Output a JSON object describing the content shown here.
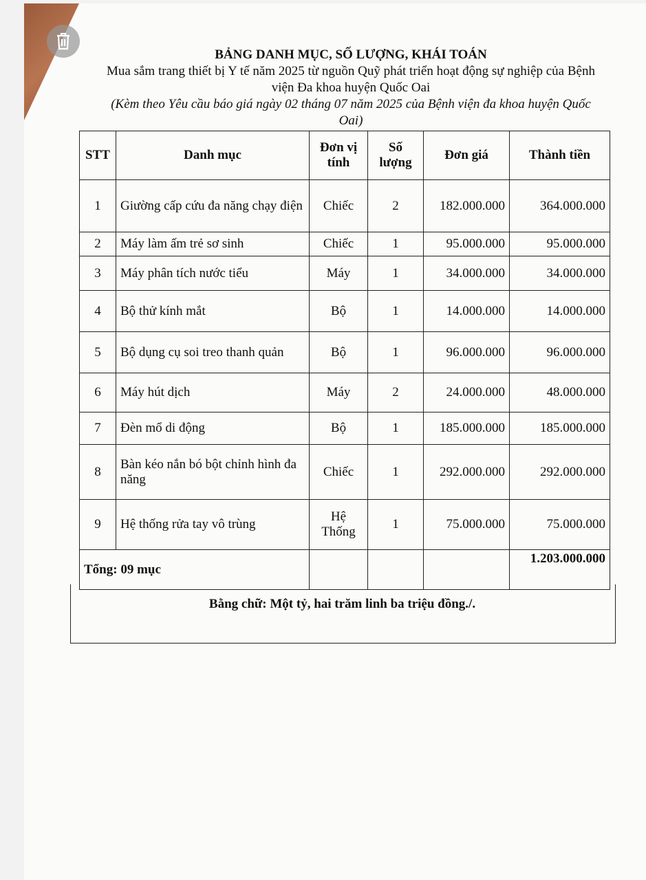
{
  "header": {
    "title": "BẢNG DANH MỤC, SỐ LƯỢNG, KHÁI TOÁN",
    "subtitle": "Mua sắm trang thiết bị Y tế năm 2025 từ nguồn Quỹ phát triển hoạt động sự nghiệp của Bệnh viện Đa khoa huyện Quốc Oai",
    "note": "(Kèm theo Yêu cầu báo giá ngày 02 tháng 07 năm 2025 của Bệnh viện đa khoa huyện Quốc Oai)"
  },
  "table": {
    "columns": [
      "STT",
      "Danh mục",
      "Đơn vị tính",
      "Số lượng",
      "Đơn giá",
      "Thành tiền"
    ],
    "rows": [
      {
        "stt": "1",
        "name": "Giường cấp cứu đa năng chạy điện",
        "unit": "Chiếc",
        "qty": "2",
        "price": "182.000.000",
        "total": "364.000.000"
      },
      {
        "stt": "2",
        "name": "Máy làm ấm trẻ sơ sinh",
        "unit": "Chiếc",
        "qty": "1",
        "price": "95.000.000",
        "total": "95.000.000"
      },
      {
        "stt": "3",
        "name": "Máy phân tích nước tiểu",
        "unit": "Máy",
        "qty": "1",
        "price": "34.000.000",
        "total": "34.000.000"
      },
      {
        "stt": "4",
        "name": "Bộ thử kính mắt",
        "unit": "Bộ",
        "qty": "1",
        "price": "14.000.000",
        "total": "14.000.000"
      },
      {
        "stt": "5",
        "name": "Bộ dụng cụ soi treo thanh quản",
        "unit": "Bộ",
        "qty": "1",
        "price": "96.000.000",
        "total": "96.000.000"
      },
      {
        "stt": "6",
        "name": "Máy hút dịch",
        "unit": "Máy",
        "qty": "2",
        "price": "24.000.000",
        "total": "48.000.000"
      },
      {
        "stt": "7",
        "name": "Đèn mổ di động",
        "unit": "Bộ",
        "qty": "1",
        "price": "185.000.000",
        "total": "185.000.000"
      },
      {
        "stt": "8",
        "name": "Bàn kéo nắn bó bột chỉnh hình đa năng",
        "unit": "Chiếc",
        "qty": "1",
        "price": "292.000.000",
        "total": "292.000.000"
      },
      {
        "stt": "9",
        "name": "Hệ thống rửa tay vô trùng",
        "unit": "Hệ Thống",
        "qty": "1",
        "price": "75.000.000",
        "total": "75.000.000"
      }
    ],
    "total_label": "Tổng: 09 mục",
    "grand_total": "1.203.000.000",
    "in_words": "Bằng chữ: Một tỷ, hai trăm linh ba triệu đồng./."
  },
  "icons": {
    "overlay": "trash-icon"
  }
}
